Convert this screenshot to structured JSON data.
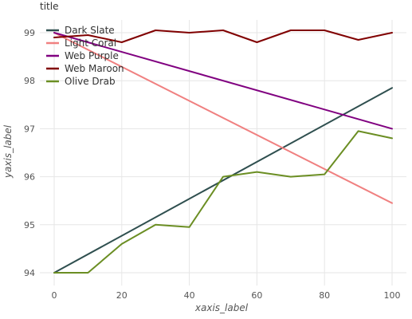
{
  "chart_data": {
    "type": "line",
    "title": "title",
    "xlabel": "xaxis_label",
    "ylabel": "yaxis_label",
    "xlim": [
      0,
      100
    ],
    "ylim": [
      94,
      99
    ],
    "xticks": [
      0,
      20,
      40,
      60,
      80,
      100
    ],
    "yticks": [
      94,
      95,
      96,
      97,
      98,
      99
    ],
    "grid": true,
    "legend_position": "left",
    "series": [
      {
        "name": "Dark Slate",
        "color": "#2f4f4f",
        "x": [
          0,
          100
        ],
        "y": [
          94.0,
          97.85
        ]
      },
      {
        "name": "Light Coral",
        "color": "#f08080",
        "x": [
          0,
          100
        ],
        "y": [
          99.0,
          95.45
        ]
      },
      {
        "name": "Web Purple",
        "color": "#800080",
        "x": [
          0,
          100
        ],
        "y": [
          99.0,
          97.0
        ]
      },
      {
        "name": "Web Maroon",
        "color": "#800000",
        "x": [
          0,
          10,
          20,
          30,
          40,
          50,
          60,
          70,
          80,
          90,
          100
        ],
        "y": [
          98.9,
          98.95,
          98.8,
          99.05,
          99.0,
          99.05,
          98.8,
          99.05,
          99.05,
          98.85,
          99.0
        ]
      },
      {
        "name": "Olive Drab",
        "color": "#6b8e23",
        "x": [
          0,
          10,
          20,
          30,
          40,
          50,
          60,
          70,
          80,
          90,
          100
        ],
        "y": [
          94.0,
          94.0,
          94.6,
          95.0,
          94.95,
          96.0,
          96.1,
          96.0,
          96.05,
          96.95,
          96.8
        ]
      }
    ]
  }
}
